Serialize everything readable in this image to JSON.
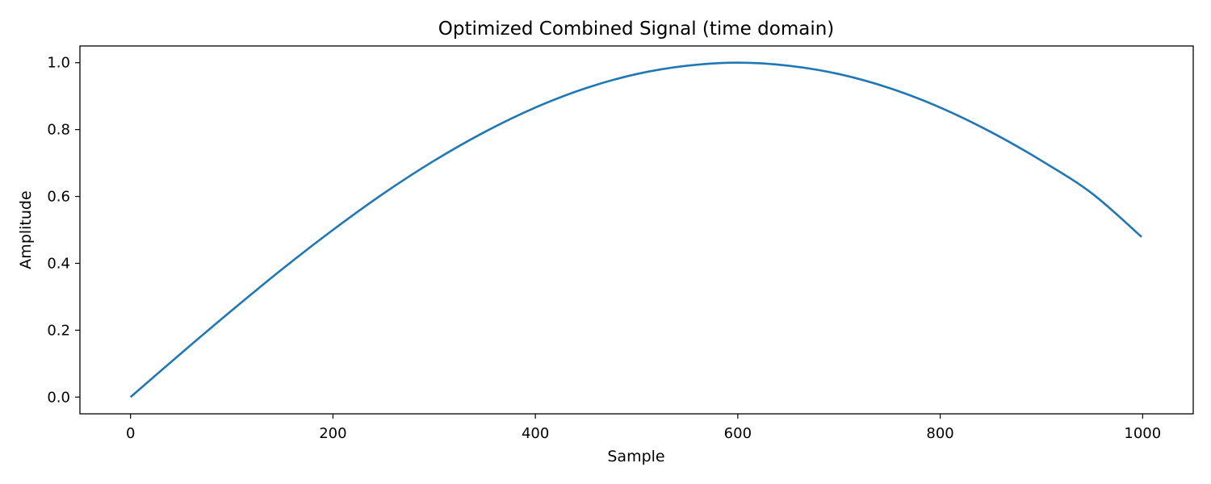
{
  "chart_data": {
    "type": "line",
    "title": "Optimized Combined Signal (time domain)",
    "xlabel": "Sample",
    "ylabel": "Amplitude",
    "xlim": [
      -50,
      1050
    ],
    "ylim": [
      -0.05,
      1.05
    ],
    "xticks": [
      0,
      200,
      400,
      600,
      800,
      1000
    ],
    "xtick_labels": [
      "0",
      "200",
      "400",
      "600",
      "800",
      "1000"
    ],
    "yticks": [
      0.0,
      0.2,
      0.4,
      0.6,
      0.8,
      1.0
    ],
    "ytick_labels": [
      "0.0",
      "0.2",
      "0.4",
      "0.6",
      "0.8",
      "1.0"
    ],
    "grid": false,
    "series": [
      {
        "color": "#1f77b4",
        "x": [
          0,
          50,
          100,
          150,
          200,
          250,
          300,
          350,
          400,
          450,
          500,
          550,
          600,
          650,
          700,
          750,
          800,
          850,
          900,
          950,
          999
        ],
        "y": [
          0.0,
          0.131,
          0.259,
          0.383,
          0.5,
          0.609,
          0.707,
          0.793,
          0.866,
          0.924,
          0.966,
          0.991,
          1.0,
          0.991,
          0.966,
          0.924,
          0.866,
          0.793,
          0.707,
          0.609,
          0.479
        ]
      }
    ]
  }
}
